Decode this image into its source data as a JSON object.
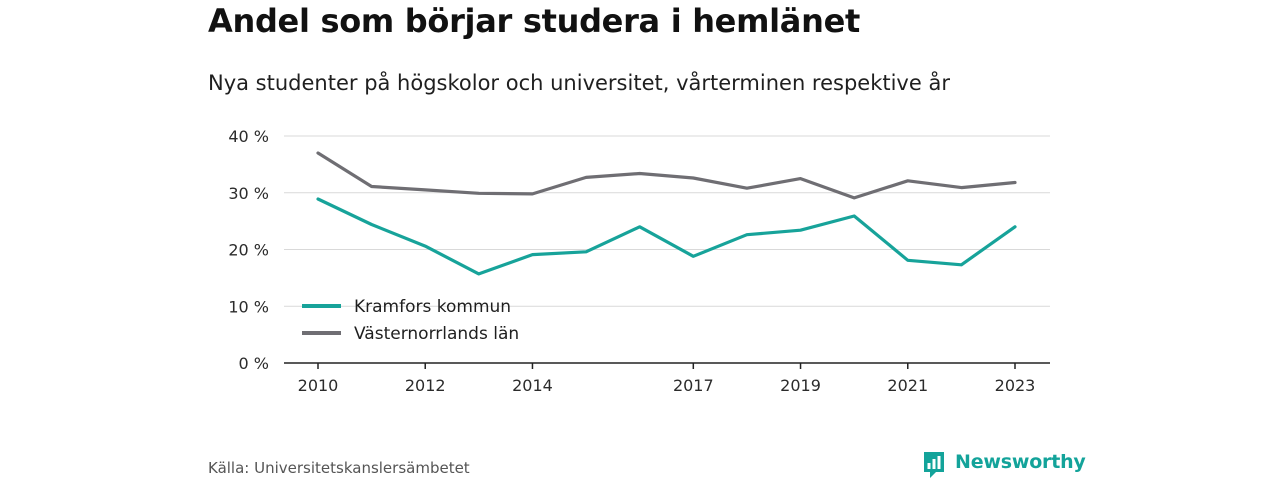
{
  "header": {
    "title": "Andel som börjar studera i hemlänet",
    "subtitle": "Nya studenter på högskolor och universitet, vårterminen respektive år"
  },
  "footer": {
    "source": "Källa: Universitetskanslersämbetet",
    "brand": "Newsworthy",
    "brand_color": "#13a39a"
  },
  "chart_data": {
    "type": "line",
    "title": "Andel som börjar studera i hemlänet",
    "subtitle": "Nya studenter på högskolor och universitet, vårterminen respektive år",
    "x": [
      2010,
      2011,
      2012,
      2013,
      2014,
      2015,
      2016,
      2017,
      2018,
      2019,
      2020,
      2021,
      2022,
      2023
    ],
    "x_ticks": [
      2010,
      2012,
      2014,
      2017,
      2019,
      2021,
      2023
    ],
    "y_ticks": [
      0,
      10,
      20,
      30,
      40
    ],
    "y_tick_labels": [
      "0 %",
      "10 %",
      "20 %",
      "30 %",
      "40 %"
    ],
    "ylim": [
      0,
      40
    ],
    "grid": "horizontal",
    "legend_position": "bottom-left",
    "series": [
      {
        "name": "Kramfors kommun",
        "color": "#17a39a",
        "values": [
          28.9,
          24.4,
          20.6,
          15.7,
          19.1,
          19.6,
          24.0,
          18.8,
          22.6,
          23.4,
          25.9,
          18.1,
          17.3,
          24.0
        ]
      },
      {
        "name": "Västernorrlands län",
        "color": "#6f6e73",
        "values": [
          37.0,
          31.1,
          30.5,
          29.9,
          29.8,
          32.7,
          33.4,
          32.6,
          30.8,
          32.5,
          29.1,
          32.1,
          30.9,
          31.8
        ]
      }
    ]
  }
}
